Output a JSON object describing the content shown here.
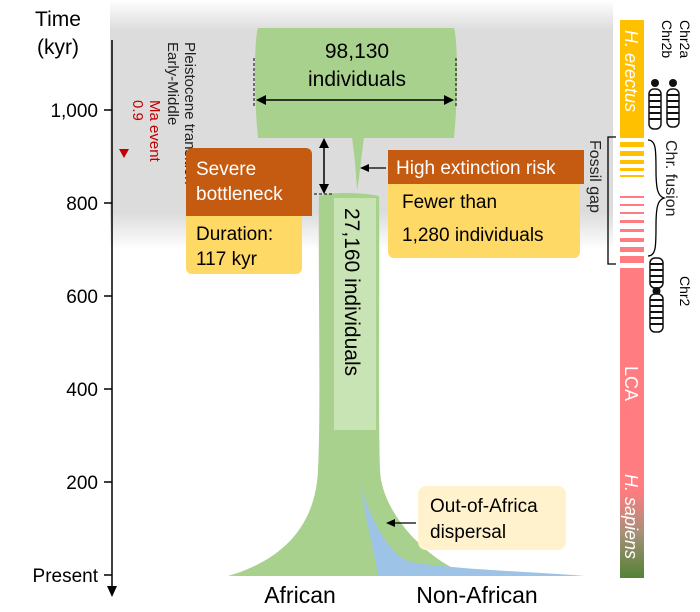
{
  "axis": {
    "title_line1": "Time",
    "title_line2": "(kyr)",
    "ticks": [
      "1,000",
      "800",
      "600",
      "400",
      "200",
      "Present"
    ]
  },
  "transition_label_line1": "Early-Middle",
  "transition_label_line2": "Pleistocene transition",
  "event_label_line1": "0.9",
  "event_label_line2": "Ma event",
  "ancestral_population": {
    "size_line1": "98,130",
    "size_line2": "individuals"
  },
  "bottleneck_population": {
    "size": "27,160 individuals"
  },
  "bottleneck_box": {
    "title_line1": "Severe",
    "title_line2": "bottleneck",
    "duration_line1": "Duration:",
    "duration_line2": "117 kyr"
  },
  "extinction_box": {
    "title": "High extinction risk",
    "body_line1": "Fewer than",
    "body_line2": "1,280 individuals"
  },
  "dispersal_box": {
    "line1": "Out-of-Africa",
    "line2": "dispersal"
  },
  "populations": {
    "african": "African",
    "non_african": "Non-African"
  },
  "fossil_gap_label": "Fossil gap",
  "chr_fusion_label": "Chr. fusion",
  "species_bar": {
    "erectus": "H. erectus",
    "lca": "LCA",
    "sapiens": "H. sapiens"
  },
  "chromosomes": {
    "chr2a": "Chr2a",
    "chr2b": "Chr2b",
    "chr2": "Chr2"
  },
  "colors": {
    "grey_band": "#dcdcdc",
    "green_flow": "#a9d18e",
    "blue_flow": "#9dc3e6",
    "orange_box": "#c55a11",
    "yellow_box": "#ffd966",
    "light_box": "#fff2cc",
    "erectus_bar": "#ffc000",
    "lca_bar": "#ff7c80",
    "sapiens_bar": "#548235",
    "event_marker": "#c00000"
  }
}
